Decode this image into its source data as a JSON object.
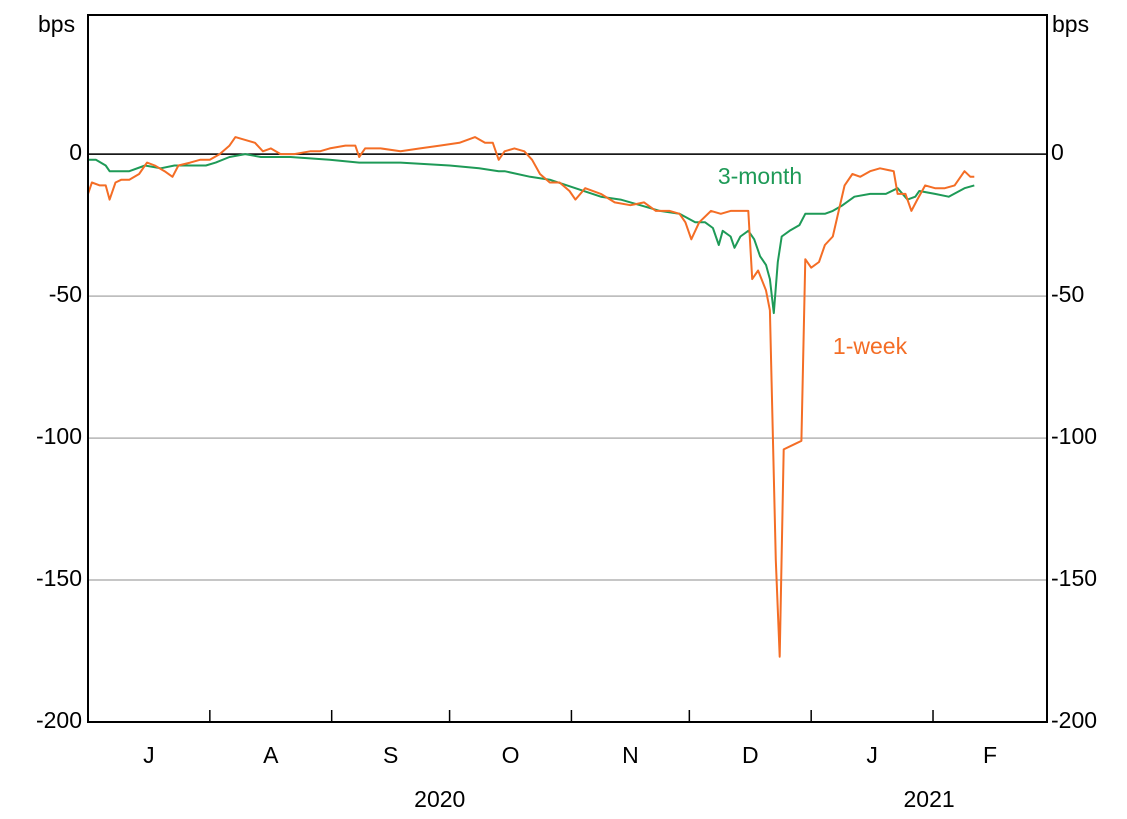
{
  "chart_data": {
    "type": "line",
    "y_unit_left": "bps",
    "y_unit_right": "bps",
    "xlim": [
      0,
      244
    ],
    "xticks": [
      31,
      62,
      92,
      123,
      153,
      184,
      215
    ],
    "xlabels": [
      {
        "value": 15.5,
        "label": "J"
      },
      {
        "value": 46.5,
        "label": "A"
      },
      {
        "value": 77,
        "label": "S"
      },
      {
        "value": 107.5,
        "label": "O"
      },
      {
        "value": 138,
        "label": "N"
      },
      {
        "value": 168.5,
        "label": "D"
      },
      {
        "value": 199.5,
        "label": "J"
      },
      {
        "value": 229.5,
        "label": "F"
      }
    ],
    "years": [
      {
        "value": 89.5,
        "label": "2020"
      },
      {
        "value": 214,
        "label": "2021"
      }
    ],
    "ylim": [
      -200,
      49
    ],
    "yticks": [
      0,
      -50,
      -100,
      -150,
      -200
    ],
    "grid": true,
    "series": [
      {
        "name": "3-month",
        "color": "#1e9a57",
        "x": [
          0,
          2,
          4.5,
          5.5,
          8,
          10.5,
          14.5,
          18.5,
          22,
          26,
          30,
          32.5,
          36,
          40,
          44,
          51.5,
          61.5,
          69,
          79.5,
          92,
          99.5,
          104.5,
          106,
          112.5,
          117.5,
          124,
          130.5,
          135.5,
          140.5,
          145.5,
          150.5,
          154.5,
          157,
          159,
          160.5,
          161.5,
          163.5,
          164.5,
          166,
          168,
          169.5,
          171,
          172.5,
          173.5,
          174.5,
          175.5,
          176.5,
          178.5,
          181,
          182.5,
          185,
          187.5,
          189.5,
          192,
          195,
          199,
          203,
          206,
          208.5,
          210.5,
          211.5,
          215.5,
          219,
          223,
          225.5
        ],
        "values": [
          -2,
          -2,
          -4,
          -6,
          -6,
          -6,
          -4,
          -5,
          -4,
          -4,
          -4,
          -3,
          -1,
          0,
          -1,
          -1,
          -2,
          -3,
          -3,
          -4,
          -5,
          -6,
          -6,
          -8,
          -9,
          -12,
          -15,
          -16,
          -18,
          -20,
          -21,
          -24,
          -24,
          -26,
          -32,
          -27,
          -29,
          -33,
          -29,
          -27,
          -30,
          -36,
          -39,
          -44,
          -56,
          -38,
          -29,
          -27,
          -25,
          -21,
          -21,
          -21,
          -20,
          -18,
          -15,
          -14,
          -14,
          -12,
          -16,
          -15,
          -13,
          -14,
          -15,
          -12,
          -11
        ]
      },
      {
        "name": "1-week",
        "color": "#f46d25",
        "x": [
          0,
          1,
          3,
          4.5,
          5.5,
          7,
          8.5,
          10.5,
          13,
          15,
          17,
          19.5,
          21.5,
          23,
          26,
          28.5,
          31,
          33.5,
          36,
          37.5,
          40,
          42.5,
          44.5,
          46.5,
          49,
          52.5,
          56.5,
          59,
          61.5,
          65.5,
          68,
          69,
          70.5,
          74.5,
          79.5,
          84.5,
          89.5,
          94.5,
          98.5,
          101,
          103,
          104.5,
          106,
          108.5,
          111,
          113,
          115,
          117.5,
          120,
          122.5,
          124,
          126.5,
          130.5,
          134,
          138,
          141.5,
          144.5,
          148,
          150.5,
          152,
          153.5,
          155.5,
          158.5,
          161,
          163.5,
          166,
          168,
          169,
          170.5,
          172.5,
          173.5,
          175,
          176,
          177,
          180,
          181.5,
          182.5,
          184,
          186,
          187.5,
          189.5,
          191,
          192.5,
          194.5,
          196.5,
          199,
          201.5,
          205,
          206,
          208,
          209.5,
          211,
          213,
          215.5,
          218,
          220.5,
          223,
          224.5,
          225.5
        ],
        "values": [
          -14,
          -10,
          -11,
          -11,
          -16,
          -10,
          -9,
          -9,
          -7,
          -3,
          -4,
          -6,
          -8,
          -4,
          -3,
          -2,
          -2,
          0,
          3,
          6,
          5,
          4,
          1,
          2,
          0,
          0,
          1,
          1,
          2,
          3,
          3,
          -1,
          2,
          2,
          1,
          2,
          3,
          4,
          6,
          4,
          4,
          -2,
          1,
          2,
          1,
          -2,
          -7,
          -10,
          -10,
          -13,
          -16,
          -12,
          -14,
          -17,
          -18,
          -17,
          -20,
          -20,
          -21,
          -24,
          -30,
          -24,
          -20,
          -21,
          -20,
          -20,
          -20,
          -44,
          -41,
          -48,
          -55,
          -143,
          -177,
          -104,
          -102,
          -101,
          -37,
          -40,
          -38,
          -32,
          -29,
          -20,
          -11,
          -7,
          -8,
          -6,
          -5,
          -6,
          -14,
          -14,
          -20,
          -16,
          -11,
          -12,
          -12,
          -11,
          -6,
          -8,
          -8
        ]
      }
    ]
  }
}
